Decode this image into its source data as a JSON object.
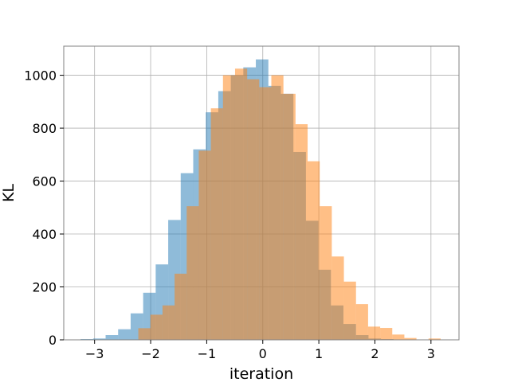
{
  "chart_data": {
    "type": "histogram",
    "title": "",
    "xlabel": "iteration",
    "ylabel": "KL",
    "xlim": [
      -3.55,
      3.5
    ],
    "ylim": [
      0,
      1110
    ],
    "xticks": [
      -3,
      -2,
      -1,
      0,
      1,
      2,
      3
    ],
    "xtick_labels": [
      "−3",
      "−2",
      "−1",
      "0",
      "1",
      "2",
      "3"
    ],
    "yticks": [
      0,
      200,
      400,
      600,
      800,
      1000
    ],
    "ytick_labels": [
      "0",
      "200",
      "400",
      "600",
      "800",
      "1000"
    ],
    "grid": true,
    "legend": "none",
    "series": [
      {
        "color": "#1f77b4",
        "alpha": 0.5,
        "bin_start": -3.25,
        "bin_width": 0.2233,
        "values": [
          3,
          5,
          18,
          40,
          100,
          178,
          285,
          453,
          630,
          720,
          860,
          940,
          1000,
          1030,
          1060,
          960,
          930,
          710,
          450,
          265,
          130,
          60,
          18,
          5,
          3
        ]
      },
      {
        "color": "#ff7f0e",
        "alpha": 0.5,
        "bin_start": -2.22,
        "bin_width": 0.2157,
        "values": [
          44,
          95,
          130,
          250,
          505,
          715,
          875,
          1000,
          1025,
          985,
          955,
          1000,
          930,
          815,
          675,
          505,
          315,
          220,
          135,
          50,
          45,
          20,
          7,
          0,
          5
        ]
      }
    ]
  }
}
